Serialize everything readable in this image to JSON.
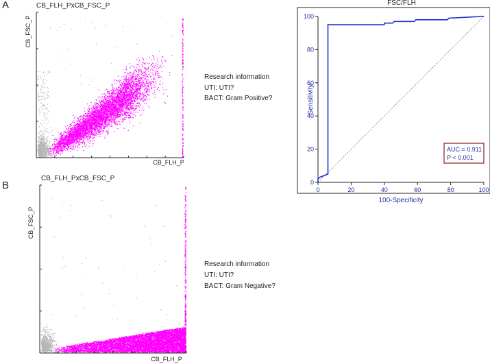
{
  "panels": {
    "a": {
      "letter": "A",
      "plot_title": "CB_FLH_PxCB_FSC_P",
      "xlabel": "CB_FLH_P",
      "ylabel": "CB_FSC_P",
      "info": [
        "Research information",
        "UTI: UTI?",
        "BACT: Gram Positive?"
      ]
    },
    "b": {
      "letter": "B",
      "plot_title": "CB_FLH_PxCB_FSC_P",
      "xlabel": "CB_FLH_P",
      "ylabel": "CB_FSC_P",
      "info": [
        "Research information",
        "UTI: UTI?",
        "BACT: Gram Negative?"
      ]
    }
  },
  "colors": {
    "positive_events": "#ff00ff",
    "gray_events": "#b5b5b5",
    "roc_curve": "#1f2fd0",
    "diagonal": "#777777",
    "auc_box_border": "#8b1a1a",
    "axis_text": "#1f2f9f"
  },
  "chart_data": [
    {
      "type": "scatter",
      "panel": "A",
      "title": "CB_FLH_PxCB_FSC_P",
      "xlabel": "CB_FLH_P",
      "ylabel": "CB_FSC_P",
      "grid": false,
      "series": [
        {
          "color": "#ff00ff",
          "x": [
            0.1,
            0.9
          ],
          "y": [
            0.05,
            0.65
          ]
        },
        {
          "color": "#b5b5b5",
          "x": [
            0.0,
            0.08
          ],
          "y": [
            0.0,
            0.15
          ]
        }
      ]
    },
    {
      "type": "line",
      "title": "FSC/FLH",
      "xlabel": "100-Specificity",
      "ylabel": "Sensitivity",
      "xlim": [
        0,
        100
      ],
      "ylim": [
        0,
        100
      ],
      "xticks": [
        "0",
        "20",
        "40",
        "60",
        "80",
        "100"
      ],
      "yticks": [
        "0",
        "20",
        "40",
        "60",
        "80",
        "100"
      ],
      "grid": false,
      "series": [
        {
          "x": [
            0,
            0,
            1,
            6,
            6,
            7,
            38,
            40,
            40,
            45,
            46,
            58,
            59,
            78,
            79,
            99,
            100
          ],
          "y": [
            0,
            2,
            3,
            5,
            95,
            95,
            95,
            95,
            96,
            96,
            97,
            97,
            98,
            98,
            99,
            100,
            100
          ]
        },
        {
          "x": [
            0,
            100
          ],
          "y": [
            0,
            100
          ],
          "style": "dashed"
        }
      ],
      "annotations": [
        "AUC = 0.911",
        "P < 0.001"
      ],
      "legend_position": "bottom-right"
    },
    {
      "type": "scatter",
      "panel": "B",
      "title": "CB_FLH_PxCB_FSC_P",
      "xlabel": "CB_FLH_P",
      "ylabel": "CB_FSC_P",
      "grid": false,
      "series": [
        {
          "color": "#ff00ff",
          "x": [
            0.08,
            1.0
          ],
          "y": [
            0.02,
            0.15
          ]
        },
        {
          "color": "#b5b5b5",
          "x": [
            0.0,
            0.08
          ],
          "y": [
            0.0,
            0.12
          ]
        }
      ]
    }
  ]
}
